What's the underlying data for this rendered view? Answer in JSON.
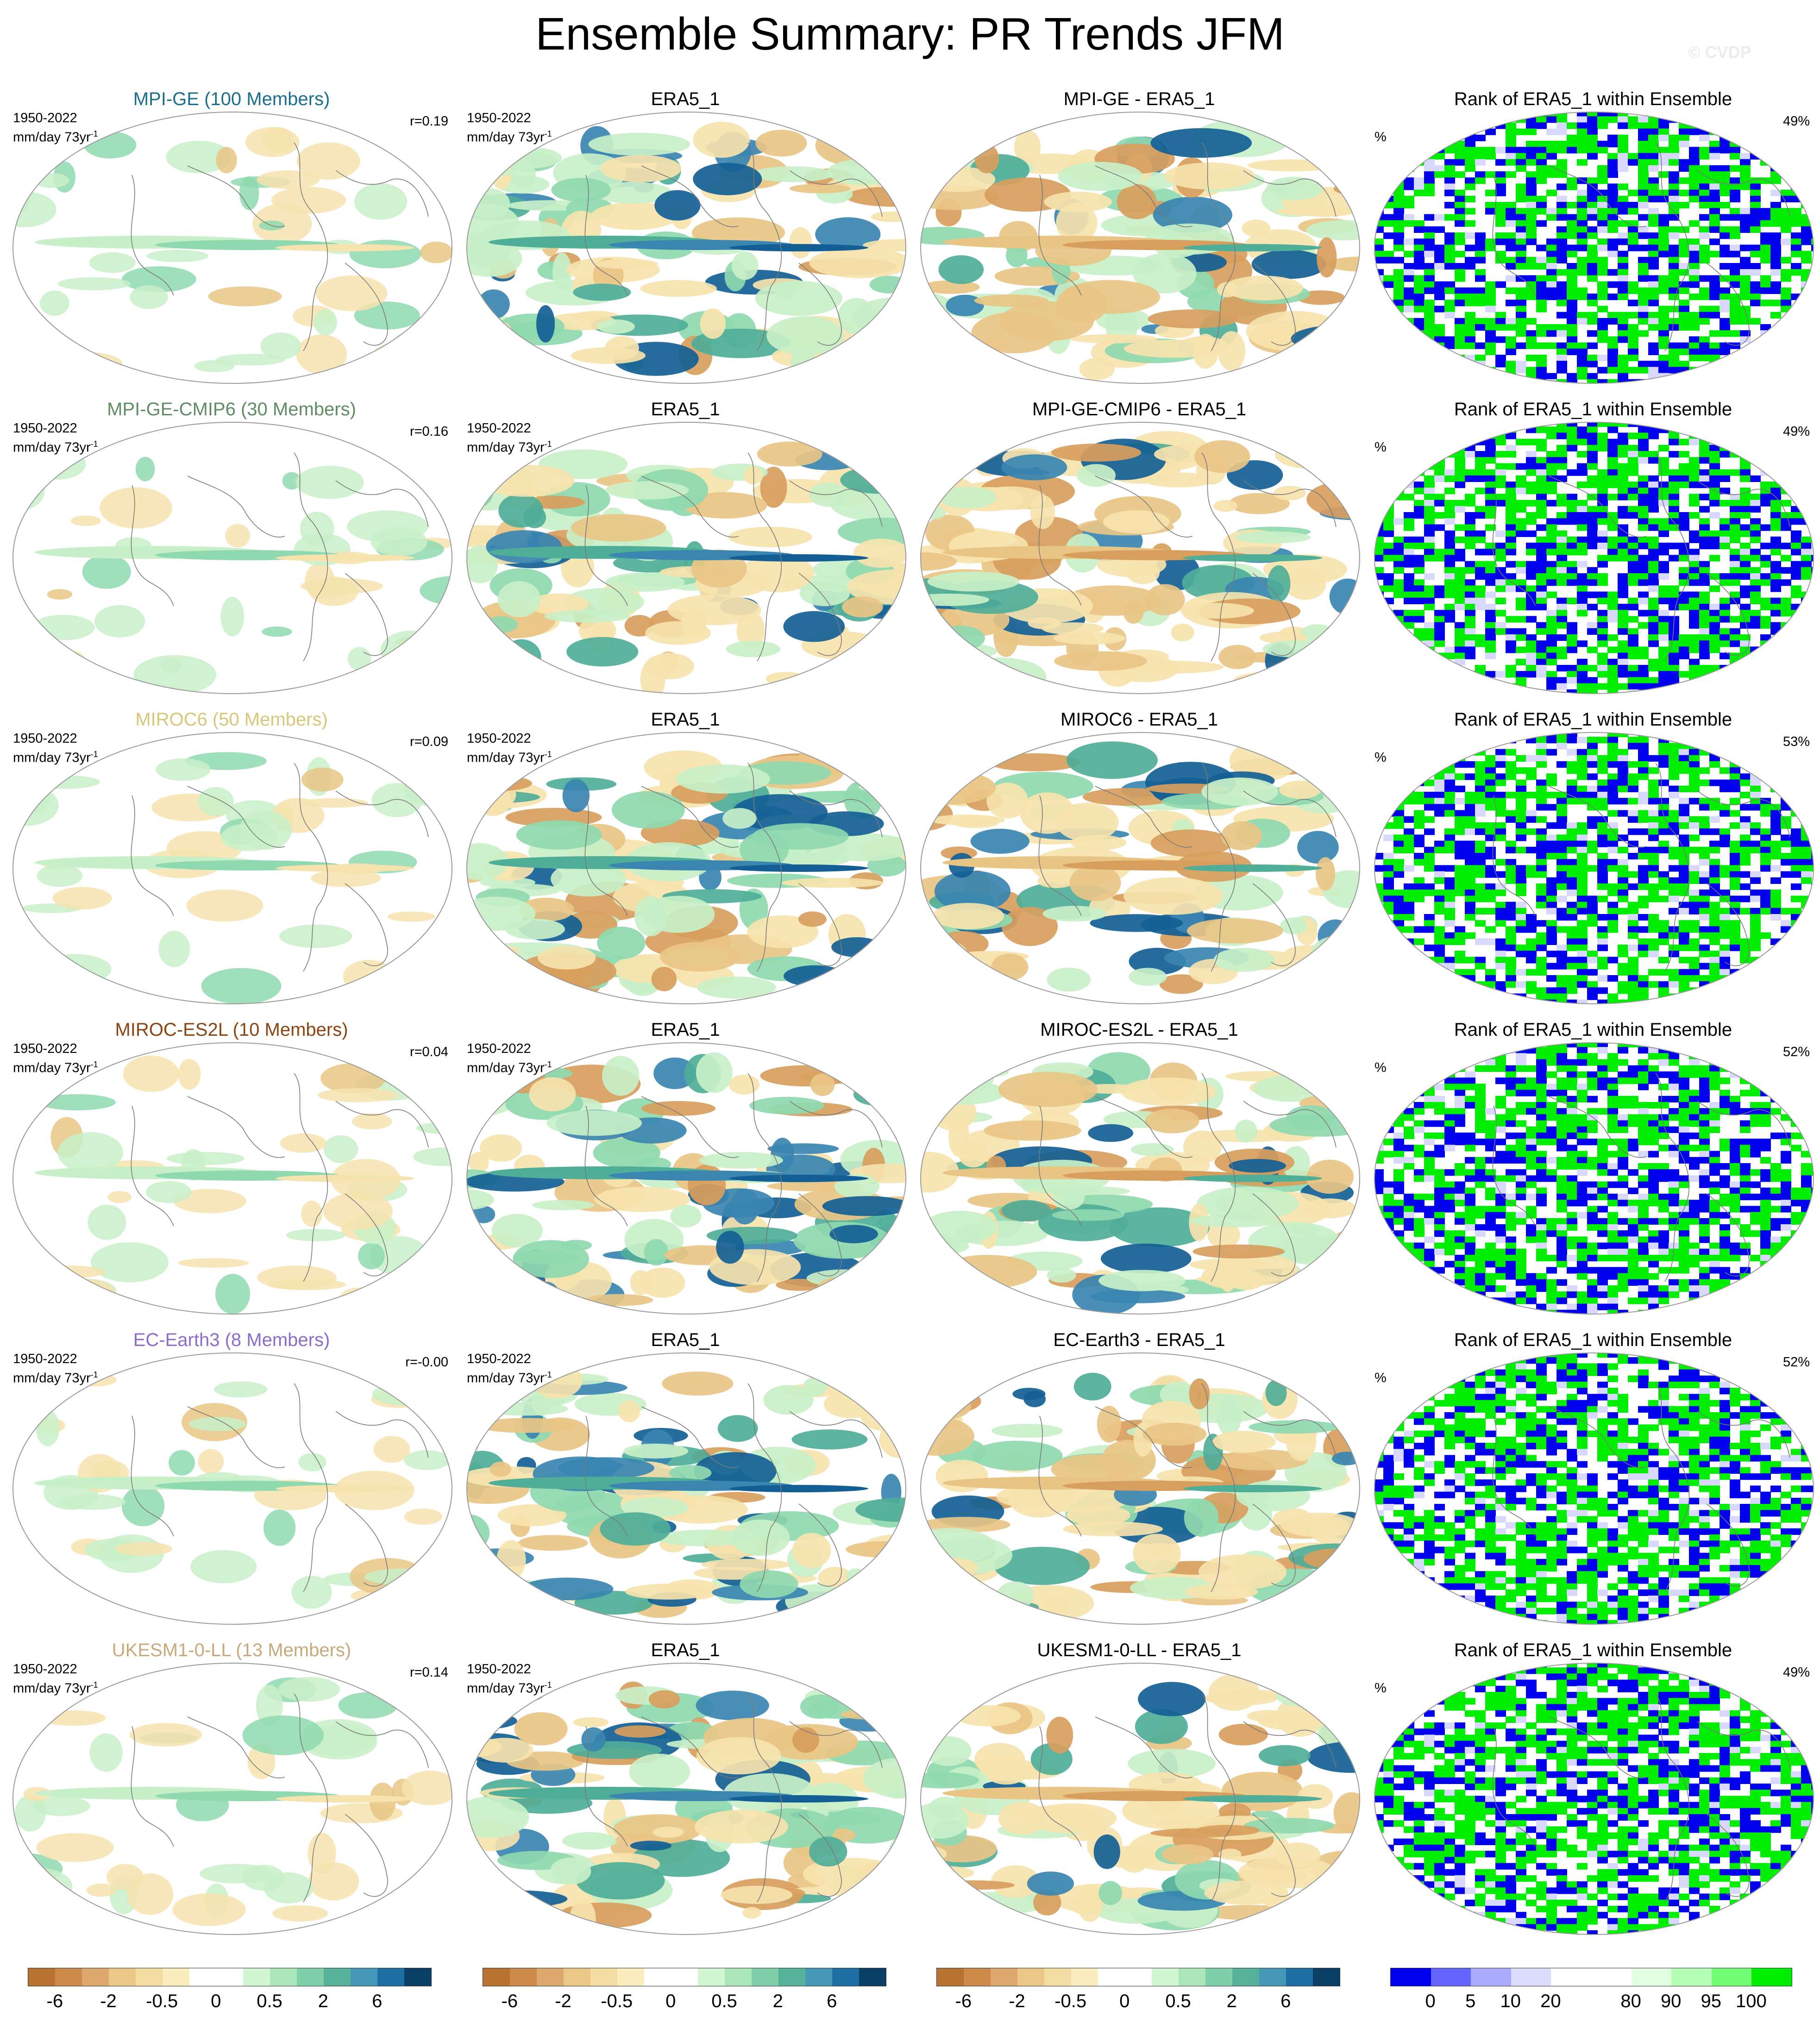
{
  "figure": {
    "title": "Ensemble Summary: PR Trends JFM",
    "watermark": "© CVDP",
    "years": "1950-2022",
    "units": "mm/day 73yr",
    "units_exp": "-1",
    "pct_symbol": "%"
  },
  "rows": [
    {
      "model_title": "MPI-GE (100 Members)",
      "model_color": "#1b6e8c",
      "corr": "r=0.19",
      "obs_title": "ERA5_1",
      "diff_title": "MPI-GE - ERA5_1",
      "rank_title": "Rank of ERA5_1 within Ensemble",
      "rank_pct": "49%"
    },
    {
      "model_title": "MPI-GE-CMIP6 (30 Members)",
      "model_color": "#5f8c63",
      "corr": "r=0.16",
      "obs_title": "ERA5_1",
      "diff_title": "MPI-GE-CMIP6 - ERA5_1",
      "rank_title": "Rank of ERA5_1 within Ensemble",
      "rank_pct": "49%"
    },
    {
      "model_title": "MIROC6 (50 Members)",
      "model_color": "#d8c77a",
      "corr": "r=0.09",
      "obs_title": "ERA5_1",
      "diff_title": "MIROC6 - ERA5_1",
      "rank_title": "Rank of ERA5_1 within Ensemble",
      "rank_pct": "53%"
    },
    {
      "model_title": "MIROC-ES2L (10 Members)",
      "model_color": "#8b4513",
      "corr": "r=0.04",
      "obs_title": "ERA5_1",
      "diff_title": "MIROC-ES2L - ERA5_1",
      "rank_title": "Rank of ERA5_1 within Ensemble",
      "rank_pct": "52%"
    },
    {
      "model_title": "EC-Earth3 (8 Members)",
      "model_color": "#8e6cc9",
      "corr": "r=-0.00",
      "obs_title": "ERA5_1",
      "diff_title": "EC-Earth3 - ERA5_1",
      "rank_title": "Rank of ERA5_1 within Ensemble",
      "rank_pct": "52%"
    },
    {
      "model_title": "UKESM1-0-LL (13 Members)",
      "model_color": "#c9a97b",
      "corr": "r=0.14",
      "obs_title": "ERA5_1",
      "diff_title": "UKESM1-0-LL - ERA5_1",
      "rank_title": "Rank of ERA5_1 within Ensemble",
      "rank_pct": "49%"
    }
  ],
  "colorbars": {
    "trend_colors": [
      "#b9722f",
      "#cc8a4b",
      "#dca76a",
      "#ebc785",
      "#f4dda3",
      "#fbeebd",
      "#ffffff",
      "#ffffff",
      "#d2f5d2",
      "#a9e7b9",
      "#7fd0a8",
      "#55b299",
      "#4697b8",
      "#1d6fa5",
      "#0c3f66"
    ],
    "trend_labels": [
      "-6",
      "-2",
      "-0.5",
      "0",
      "0.5",
      "2",
      "6"
    ],
    "rank_colors": [
      "#0000ee",
      "#6565ff",
      "#aaaaff",
      "#dcdcff",
      "#ffffff",
      "#ffffff",
      "#e2ffe2",
      "#b4ffb4",
      "#73ff73",
      "#00ee00"
    ],
    "rank_labels": [
      "0",
      "5",
      "10",
      "20",
      "80",
      "90",
      "95",
      "100"
    ]
  },
  "map_palette": {
    "land": "#ffffff",
    "coast": "#7a7a7a",
    "wet1": "#c8f0c8",
    "wet2": "#8fd9b0",
    "wet3": "#4fae98",
    "wet4": "#3a86b1",
    "wet5": "#135f95",
    "dry1": "#f6e3ae",
    "dry2": "#e9c585",
    "dry3": "#d89e5d",
    "rank_blue": "#0000ee",
    "rank_green": "#00ee00",
    "rank_lightblue": "#d8d8ff"
  }
}
